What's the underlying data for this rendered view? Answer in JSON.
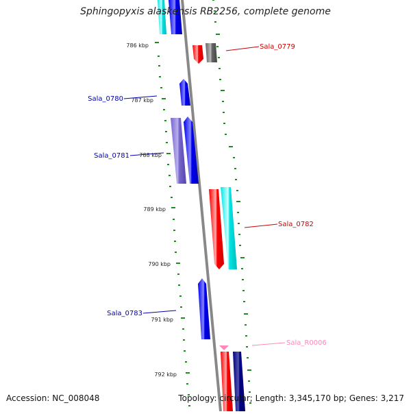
{
  "title": "Sphingopyxis alaskensis RB2256, complete genome",
  "accession": "Accession: NC_008048",
  "summary": "Topology: circular; Length: 3,345,170 bp; Genes: 3,217",
  "kbp_ticks": [
    "786 kbp",
    "787 kbp",
    "788 kbp",
    "789 kbp",
    "790 kbp",
    "791 kbp",
    "792 kbp"
  ],
  "gene_labels": {
    "sala_0779": "Sala_0779",
    "sala_0780": "Sala_0780",
    "sala_0781": "Sala_0781",
    "sala_0782": "Sala_0782",
    "sala_0783": "Sala_0783",
    "sala_r0006": "Sala_R0006"
  },
  "colors": {
    "forward_cds": "#ff0000",
    "reverse_cds": "#0000ff",
    "rna": "#ff88bb",
    "backbone": "#888888",
    "tick": "#228822",
    "label_forward": "#cc0000",
    "label_reverse": "#0000aa"
  }
}
